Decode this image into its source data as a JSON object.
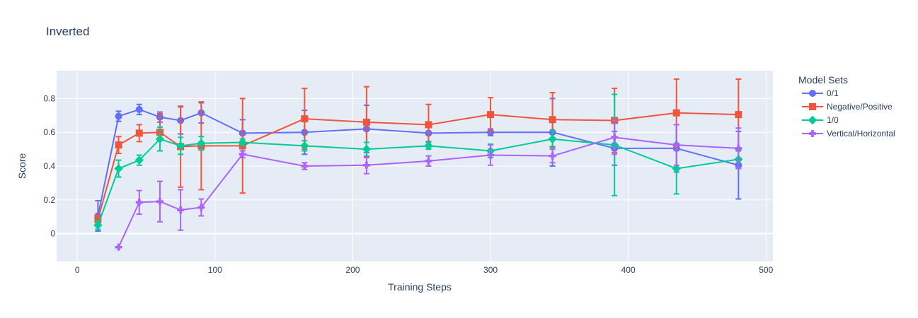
{
  "chart_data": {
    "type": "line",
    "title": "Inverted",
    "xlabel": "Training Steps",
    "ylabel": "Score",
    "xlim": [
      -15,
      505
    ],
    "ylim": [
      -0.165,
      0.965
    ],
    "xticks": [
      0,
      100,
      200,
      300,
      400,
      500
    ],
    "yticks": [
      0,
      0.2,
      0.4,
      0.6,
      0.8
    ],
    "xtick_labels": [
      "0",
      "100",
      "200",
      "300",
      "400",
      "500"
    ],
    "ytick_labels": [
      "0",
      "0.2",
      "0.4",
      "0.6",
      "0.8"
    ],
    "legend_title": "Model Sets",
    "legend_position": "right",
    "series": [
      {
        "name": "0/1",
        "color": "#636efa",
        "marker": "circle",
        "x": [
          15,
          30,
          45,
          60,
          75,
          90,
          120,
          165,
          210,
          255,
          300,
          345,
          390,
          435,
          480
        ],
        "y": [
          0.105,
          0.695,
          0.735,
          0.69,
          0.67,
          0.715,
          0.595,
          0.6,
          0.62,
          0.595,
          0.6,
          0.6,
          0.505,
          0.505,
          0.405
        ],
        "error": [
          0.09,
          0.03,
          0.03,
          0.03,
          0.08,
          0.06,
          0.08,
          0.13,
          0.14,
          0.05,
          0.02,
          0.2,
          0.1,
          0.14,
          0.2
        ]
      },
      {
        "name": "Negative/Positive",
        "color": "#ef553b",
        "marker": "square",
        "x": [
          15,
          30,
          45,
          60,
          75,
          90,
          120,
          165,
          210,
          255,
          300,
          345,
          390,
          435,
          480
        ],
        "y": [
          0.085,
          0.525,
          0.595,
          0.6,
          0.515,
          0.52,
          0.52,
          0.68,
          0.66,
          0.645,
          0.705,
          0.675,
          0.67,
          0.715,
          0.705
        ],
        "error": [
          0.02,
          0.05,
          0.05,
          0.11,
          0.24,
          0.26,
          0.28,
          0.18,
          0.21,
          0.12,
          0.1,
          0.16,
          0.19,
          0.2,
          0.21
        ]
      },
      {
        "name": "1/0",
        "color": "#00cc96",
        "marker": "diamond",
        "x": [
          15,
          30,
          45,
          60,
          75,
          90,
          120,
          165,
          210,
          255,
          300,
          345,
          390,
          435,
          480
        ],
        "y": [
          0.05,
          0.385,
          0.435,
          0.56,
          0.52,
          0.535,
          0.54,
          0.52,
          0.5,
          0.52,
          0.49,
          0.56,
          0.525,
          0.385,
          0.44
        ],
        "error": [
          0.025,
          0.05,
          0.03,
          0.07,
          0.05,
          0.04,
          0.02,
          0.03,
          0.04,
          0.02,
          0.04,
          0.05,
          0.3,
          0.15,
          0.05
        ]
      },
      {
        "name": "Vertical/Horizontal",
        "color": "#ab63fa",
        "marker": "cross",
        "x": [
          30,
          45,
          60,
          75,
          90,
          120,
          165,
          210,
          255,
          300,
          345,
          390,
          435,
          480
        ],
        "y": [
          -0.08,
          0.185,
          0.19,
          0.14,
          0.155,
          0.47,
          0.4,
          0.405,
          0.43,
          0.465,
          0.46,
          0.57,
          0.525,
          0.505
        ],
        "error": [
          0.0,
          0.07,
          0.12,
          0.12,
          0.05,
          0.02,
          0.02,
          0.05,
          0.03,
          0.06,
          0.04,
          0.1,
          0.12,
          0.12
        ]
      }
    ]
  }
}
